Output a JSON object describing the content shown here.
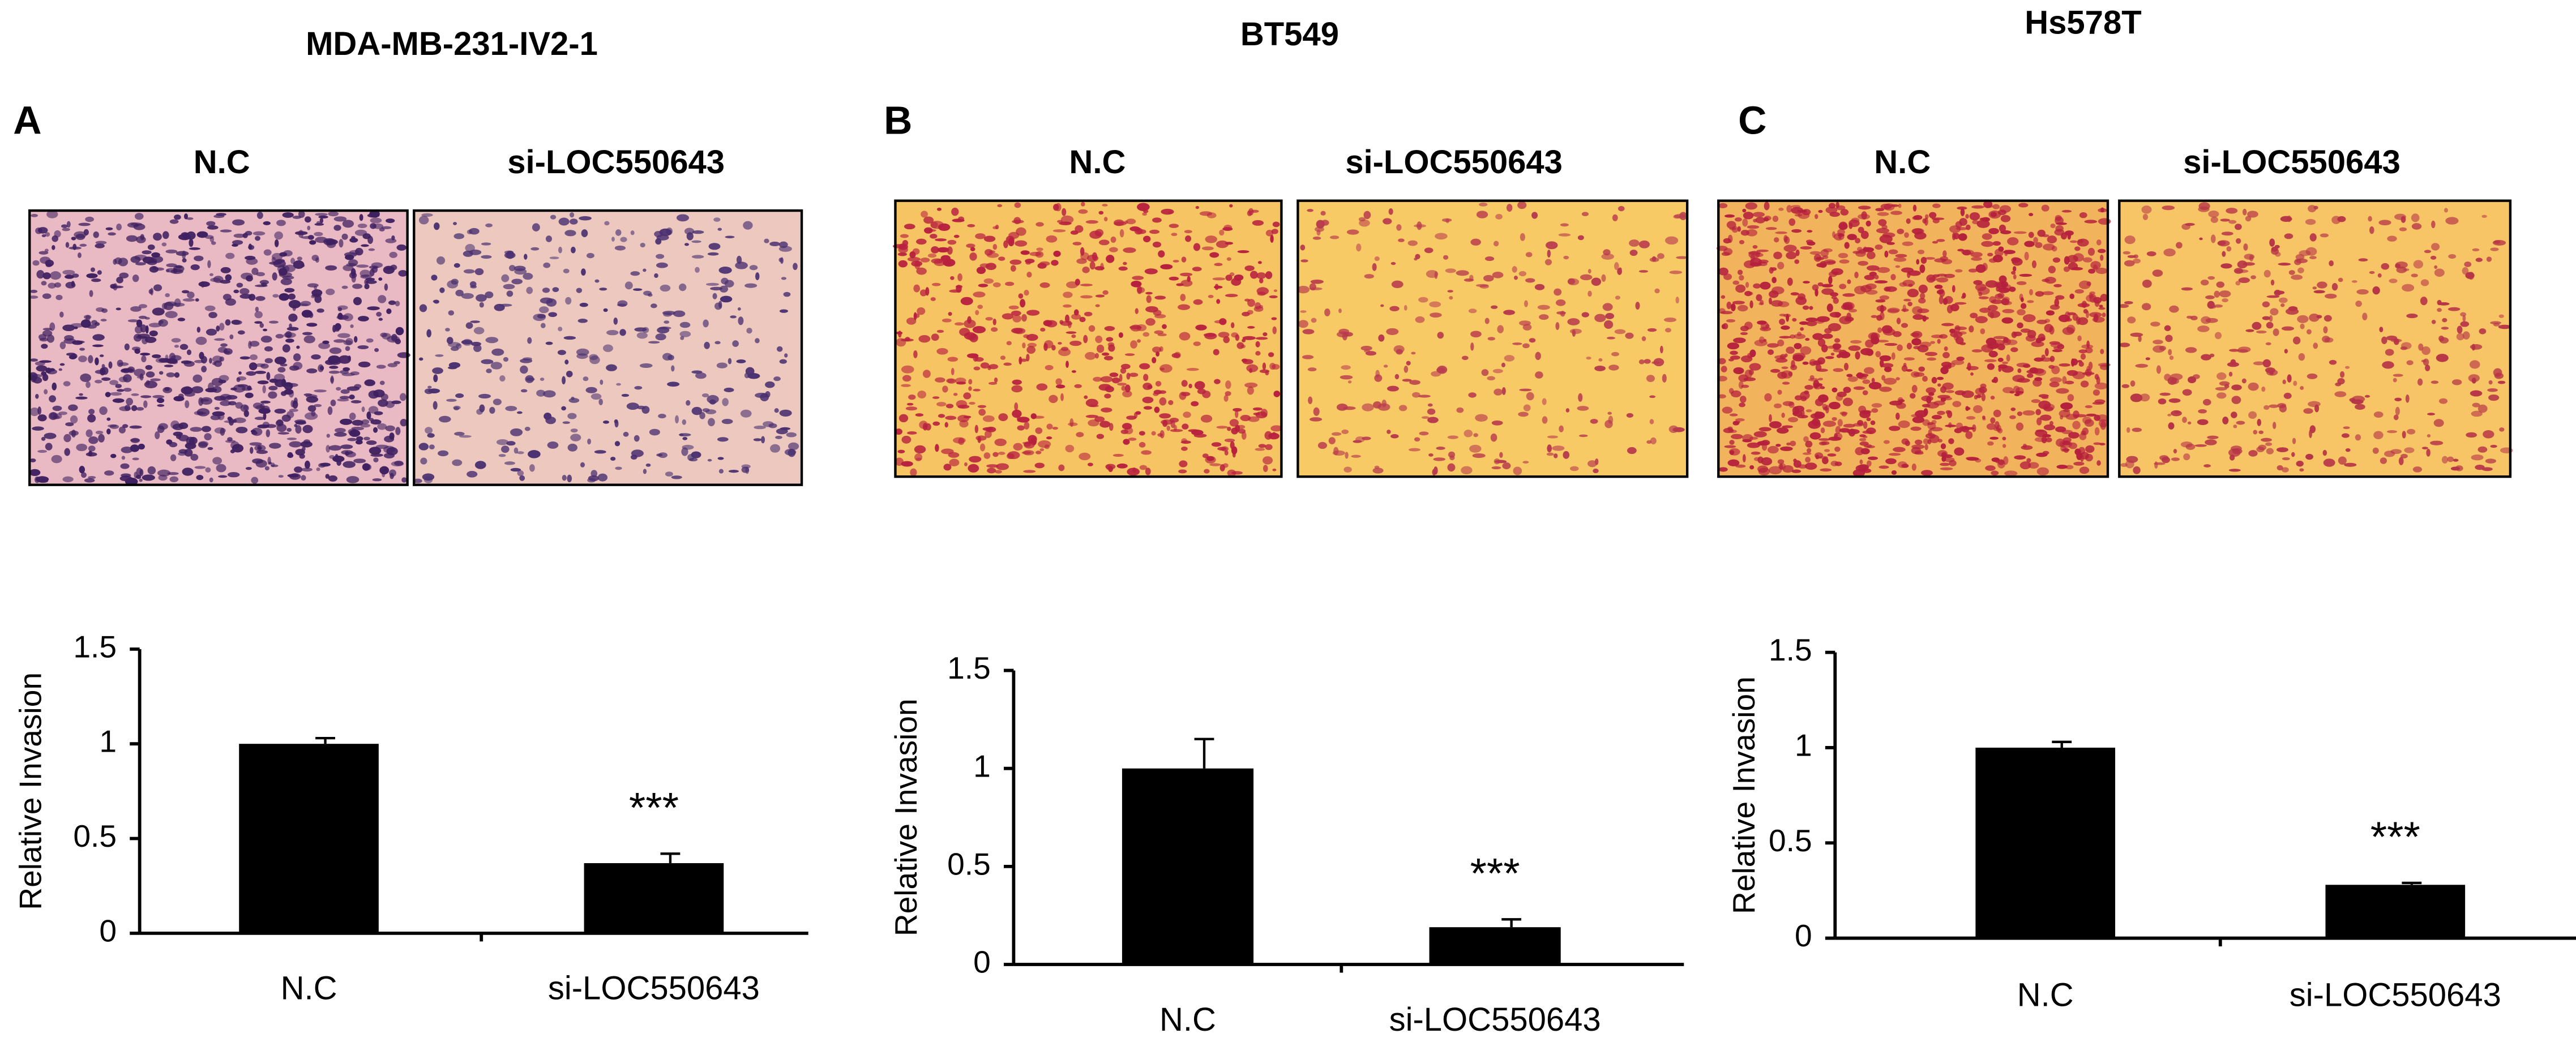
{
  "chart_data": [
    {
      "type": "bar",
      "panel": "A",
      "title": "MDA-MB-231-IV2-1",
      "image_labels": [
        "N.C",
        "si-LOC550643"
      ],
      "ylabel": "Relative Invasion",
      "categories": [
        "N.C",
        "si-LOC550643"
      ],
      "values": [
        1,
        0.37
      ],
      "errors": [
        0.03,
        0.05
      ],
      "significance": [
        null,
        "***"
      ],
      "color": "#000000",
      "ylim": [
        0,
        1.5
      ],
      "yticks": [
        0,
        0.5,
        1,
        1.5
      ]
    },
    {
      "type": "bar",
      "panel": "B",
      "title": "BT549",
      "image_labels": [
        "N.C",
        "si-LOC550643"
      ],
      "ylabel": "Relative Invasion",
      "categories": [
        "N.C",
        "si-LOC550643"
      ],
      "values": [
        1,
        0.19
      ],
      "errors": [
        0.15,
        0.04
      ],
      "significance": [
        null,
        "***"
      ],
      "color": "#000000",
      "ylim": [
        0,
        1.5
      ],
      "yticks": [
        0,
        0.5,
        1,
        1.5
      ]
    },
    {
      "type": "bar",
      "panel": "C",
      "title": "Hs578T",
      "image_labels": [
        "N.C",
        "si-LOC550643"
      ],
      "ylabel": "Relative Invasion",
      "categories": [
        "N.C",
        "si-LOC550643"
      ],
      "values": [
        1,
        0.28
      ],
      "errors": [
        0.03,
        0.01
      ],
      "significance": [
        null,
        "***"
      ],
      "color": "#000000",
      "ylim": [
        0,
        1.5
      ],
      "yticks": [
        0,
        0.5,
        1,
        1.5
      ]
    }
  ]
}
